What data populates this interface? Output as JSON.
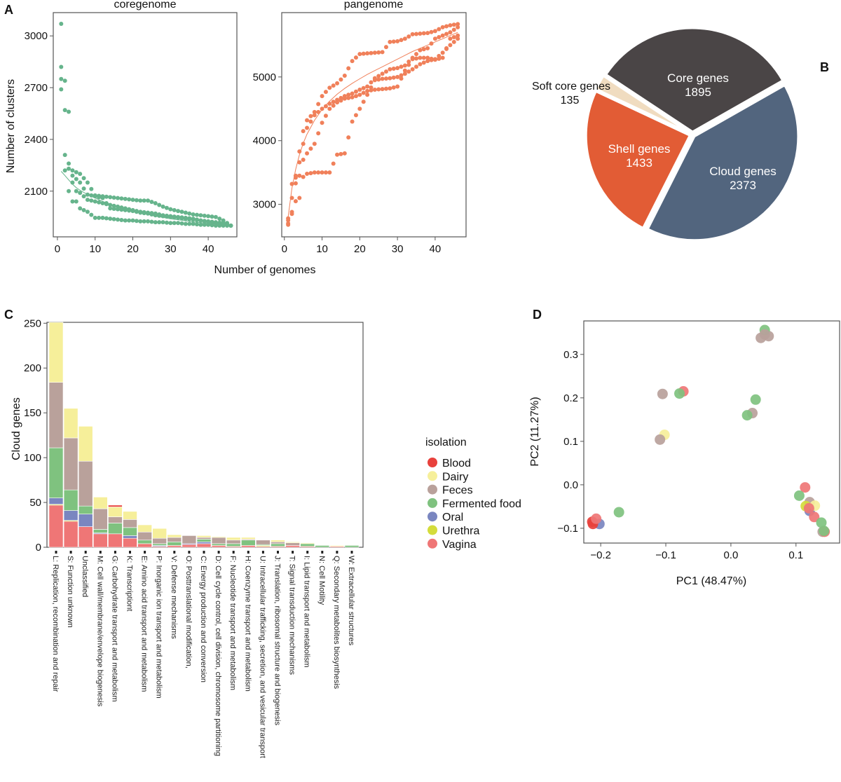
{
  "panel_labels": [
    "A",
    "B",
    "C",
    "D"
  ],
  "chart_data": [
    {
      "type": "scatter",
      "title": "coregenome",
      "xlabel": "Number of genomes",
      "ylabel": "Number of clusters",
      "xlim": [
        -1.1,
        47.6
      ],
      "ylim": [
        1835,
        3135
      ],
      "xticks": [
        0,
        10,
        20,
        30,
        40
      ],
      "yticks": [
        2100,
        2400,
        2700,
        3000
      ],
      "color": "#66b48c",
      "x": [
        1,
        2,
        3,
        4,
        5,
        6,
        8,
        10,
        12,
        14,
        16,
        18,
        20,
        22,
        24,
        26,
        28,
        30,
        32,
        34,
        36,
        38,
        40,
        42,
        44,
        46
      ],
      "trajectories": [
        [
          3070,
          2740,
          2560,
          2220,
          2210,
          2200,
          2150,
          2075,
          2070,
          2065,
          2060,
          2055,
          2050,
          2045,
          2045,
          2030,
          2010,
          1995,
          1985,
          1975,
          1965,
          1960,
          1955,
          1950,
          1930,
          1900
        ],
        [
          2820,
          2570,
          2260,
          2190,
          2170,
          2150,
          2080,
          2070,
          2060,
          2000,
          1995,
          1990,
          1985,
          1975,
          1970,
          1960,
          1955,
          1950,
          1945,
          1940,
          1935,
          1930,
          1925,
          1920,
          1915,
          1900
        ],
        [
          2750,
          2310,
          2230,
          2150,
          2100,
          2090,
          2050,
          2040,
          2030,
          2020,
          2010,
          2000,
          1990,
          1980,
          1975,
          1970,
          1960,
          1955,
          1950,
          1945,
          1940,
          1930,
          1920,
          1915,
          1910,
          1900
        ],
        [
          2690,
          2220,
          2100,
          2040,
          2040,
          2000,
          1980,
          1945,
          1945,
          1940,
          1935,
          1930,
          1930,
          1925,
          1925,
          1920,
          1920,
          1915,
          1915,
          1910,
          1910,
          1905,
          1905,
          1900,
          1900,
          1900
        ]
      ],
      "fit": [
        2215,
        2190,
        2165,
        2140,
        2120,
        2105,
        2080,
        2060,
        2040,
        2025,
        2010,
        1998,
        1985,
        1975,
        1965,
        1955,
        1948,
        1940,
        1934,
        1928,
        1922,
        1917,
        1912,
        1908,
        1905,
        1902
      ]
    },
    {
      "type": "scatter",
      "title": "pangenome",
      "xlim": [
        -0.7,
        48.2
      ],
      "ylim": [
        2490,
        6010
      ],
      "xticks": [
        0,
        10,
        20,
        30,
        40
      ],
      "yticks": [
        3000,
        4000,
        5000
      ],
      "color": "#f0805a",
      "x": [
        1,
        2,
        3,
        4,
        5,
        6,
        8,
        10,
        12,
        14,
        16,
        18,
        20,
        22,
        24,
        26,
        28,
        30,
        32,
        34,
        36,
        38,
        40,
        42,
        44,
        46
      ],
      "trajectories": [
        [
          2780,
          3320,
          3450,
          3830,
          4150,
          4320,
          4450,
          4700,
          4830,
          4900,
          5020,
          5250,
          5360,
          5370,
          5380,
          5390,
          5550,
          5560,
          5600,
          5670,
          5680,
          5690,
          5720,
          5780,
          5810,
          5830
        ],
        [
          2750,
          3100,
          3420,
          3660,
          3950,
          4200,
          4400,
          4500,
          4580,
          4640,
          4700,
          4740,
          4800,
          4850,
          4980,
          5050,
          5120,
          5140,
          5180,
          5300,
          5420,
          5450,
          5600,
          5650,
          5700,
          5780
        ],
        [
          2680,
          2880,
          3330,
          3450,
          3700,
          3800,
          3950,
          4280,
          4500,
          4600,
          4660,
          4680,
          4720,
          4780,
          4800,
          4810,
          4820,
          4850,
          5100,
          5280,
          5300,
          5300,
          5270,
          5300,
          5600,
          5650
        ],
        [
          2700,
          2850,
          3050,
          3100,
          3430,
          3480,
          3500,
          3500,
          3500,
          3780,
          3800,
          4300,
          4500,
          4720,
          4950,
          4970,
          4980,
          5000,
          5050,
          5120,
          5200,
          5250,
          5280,
          5380,
          5500,
          5600
        ]
      ],
      "fit": [
        2800,
        3250,
        3550,
        3780,
        3960,
        4100,
        4320,
        4490,
        4620,
        4730,
        4820,
        4900,
        4970,
        5040,
        5100,
        5160,
        5220,
        5280,
        5340,
        5400,
        5450,
        5500,
        5550,
        5600,
        5650,
        5700
      ]
    },
    {
      "type": "pie",
      "slices": [
        {
          "label": "Core genes",
          "value": 1895,
          "color": "#4a4546"
        },
        {
          "label": "Cloud genes",
          "value": 2373,
          "color": "#52657e"
        },
        {
          "label": "Shell genes",
          "value": 1433,
          "color": "#e25c35"
        },
        {
          "label": "Soft core genes",
          "value": 135,
          "color": "#f0dcc0"
        }
      ]
    },
    {
      "type": "bar",
      "stacked": true,
      "ylabel": "Cloud genes",
      "ylim": [
        0,
        251
      ],
      "yticks": [
        0,
        50,
        100,
        150,
        200,
        250
      ],
      "legend_title": "isolation",
      "legend": "right",
      "categories": [
        "L: Replication, recombination and repair",
        "S: Function unknown",
        "Unclassified",
        "M: Cell wall/membrane/envelope biogenesis",
        "G: Carbohydrate transport and metabolism",
        "K: Transcriptiont",
        "E: Amino acid transport and metabolism",
        "P: Inorganic ion transport and metabolism",
        "V: Defense mechanisms",
        "O: Posttranslational modification,",
        "C: Energy production and conversion",
        "D: Cell cycle control, cell division, chromosome partitioning",
        "F: Nucleotide transport and metabolism",
        "H: Coenzyme transport and metabolism",
        "U: Intracellular trafficking, secretion, and vesicular transport",
        "J: Translation, ribosomal structure and biogenesis",
        "T: Signal transduction mechanisms",
        "I: Lipid transport and metabolism",
        "N: Cell Motility",
        "Q: Secondary metabolites biosynthesis",
        "W: Extracellular structures"
      ],
      "series": [
        {
          "name": "Blood",
          "color": "#e8413c",
          "values": [
            0,
            0,
            0,
            0,
            2,
            0,
            0,
            0,
            0,
            0,
            0,
            0,
            0,
            0,
            0,
            0,
            0,
            0,
            0,
            0,
            0
          ]
        },
        {
          "name": "Dairy",
          "color": "#f6ef9a",
          "values": [
            67,
            33,
            39,
            13,
            11,
            9,
            8,
            11,
            3,
            0,
            2,
            1,
            3,
            2,
            0,
            2,
            1,
            1,
            0,
            1,
            0
          ]
        },
        {
          "name": "Feces",
          "color": "#b9a19b",
          "values": [
            73,
            58,
            50,
            23,
            7,
            9,
            9,
            6,
            5,
            9,
            2,
            7,
            4,
            1,
            5,
            2,
            3,
            0,
            0,
            0,
            0
          ]
        },
        {
          "name": "Fermented food",
          "color": "#7fc27f",
          "values": [
            56,
            23,
            9,
            4,
            12,
            9,
            4,
            2,
            4,
            0,
            3,
            2,
            3,
            6,
            1,
            3,
            0,
            3,
            2,
            0,
            2
          ]
        },
        {
          "name": "Oral",
          "color": "#7a86c0",
          "values": [
            7,
            11,
            14,
            1,
            0,
            3,
            0,
            1,
            0,
            1,
            2,
            0,
            0,
            0,
            0,
            0,
            0,
            0,
            0,
            0,
            0
          ]
        },
        {
          "name": "Urethra",
          "color": "#d4dc3c",
          "values": [
            1,
            1,
            0,
            0,
            0,
            0,
            0,
            0,
            0,
            0,
            0,
            0,
            0,
            0,
            1,
            0,
            0,
            0,
            0,
            0,
            0
          ]
        },
        {
          "name": "Vagina",
          "color": "#ef7676",
          "values": [
            47,
            29,
            23,
            15,
            15,
            10,
            4,
            1,
            2,
            3,
            4,
            2,
            1,
            2,
            1,
            1,
            2,
            1,
            0,
            1,
            0
          ]
        }
      ]
    },
    {
      "type": "scatter",
      "xlabel": "PC1 (48.47%)",
      "ylabel": "PC2 (11.27%)",
      "xlim": [
        -0.226,
        0.167
      ],
      "ylim": [
        -0.134,
        0.377
      ],
      "xticks": [
        -0.2,
        -0.1,
        0.0,
        0.1
      ],
      "xtick_labels": [
        "−0.2",
        "−0.1",
        "0.0",
        "0.1"
      ],
      "yticks": [
        -0.1,
        0.0,
        0.1,
        0.2,
        0.3
      ],
      "ytick_labels": [
        "−0.1",
        "0.0",
        "0.1",
        "0.2",
        "0.3"
      ],
      "points": [
        {
          "x": 0.046,
          "y": 0.338,
          "group": "Feces"
        },
        {
          "x": 0.058,
          "y": 0.342,
          "group": "Feces"
        },
        {
          "x": 0.052,
          "y": 0.356,
          "group": "Fermented food"
        },
        {
          "x": 0.052,
          "y": 0.346,
          "group": "Feces"
        },
        {
          "x": -0.105,
          "y": 0.209,
          "group": "Feces"
        },
        {
          "x": -0.073,
          "y": 0.215,
          "group": "Vagina"
        },
        {
          "x": -0.079,
          "y": 0.21,
          "group": "Fermented food"
        },
        {
          "x": -0.102,
          "y": 0.115,
          "group": "Dairy"
        },
        {
          "x": -0.109,
          "y": 0.104,
          "group": "Feces"
        },
        {
          "x": 0.038,
          "y": 0.196,
          "group": "Fermented food"
        },
        {
          "x": 0.033,
          "y": 0.165,
          "group": "Feces"
        },
        {
          "x": 0.025,
          "y": 0.16,
          "group": "Fermented food"
        },
        {
          "x": -0.172,
          "y": -0.063,
          "group": "Fermented food"
        },
        {
          "x": -0.202,
          "y": -0.09,
          "group": "Oral"
        },
        {
          "x": -0.213,
          "y": -0.085,
          "group": "Blood"
        },
        {
          "x": -0.212,
          "y": -0.09,
          "group": "Blood"
        },
        {
          "x": -0.207,
          "y": -0.078,
          "group": "Vagina"
        },
        {
          "x": 0.114,
          "y": -0.006,
          "group": "Vagina"
        },
        {
          "x": 0.105,
          "y": -0.025,
          "group": "Fermented food"
        },
        {
          "x": 0.121,
          "y": -0.04,
          "group": "Feces"
        },
        {
          "x": 0.121,
          "y": -0.06,
          "group": "Oral"
        },
        {
          "x": 0.115,
          "y": -0.049,
          "group": "Urethra"
        },
        {
          "x": 0.129,
          "y": -0.048,
          "group": "Dairy"
        },
        {
          "x": 0.12,
          "y": -0.054,
          "group": "Vagina"
        },
        {
          "x": 0.128,
          "y": -0.074,
          "group": "Vagina"
        },
        {
          "x": 0.139,
          "y": -0.087,
          "group": "Fermented food"
        },
        {
          "x": 0.141,
          "y": -0.108,
          "group": "Feces"
        },
        {
          "x": 0.144,
          "y": -0.108,
          "group": "Vagina"
        },
        {
          "x": 0.143,
          "y": -0.106,
          "group": "Fermented food"
        }
      ]
    }
  ]
}
